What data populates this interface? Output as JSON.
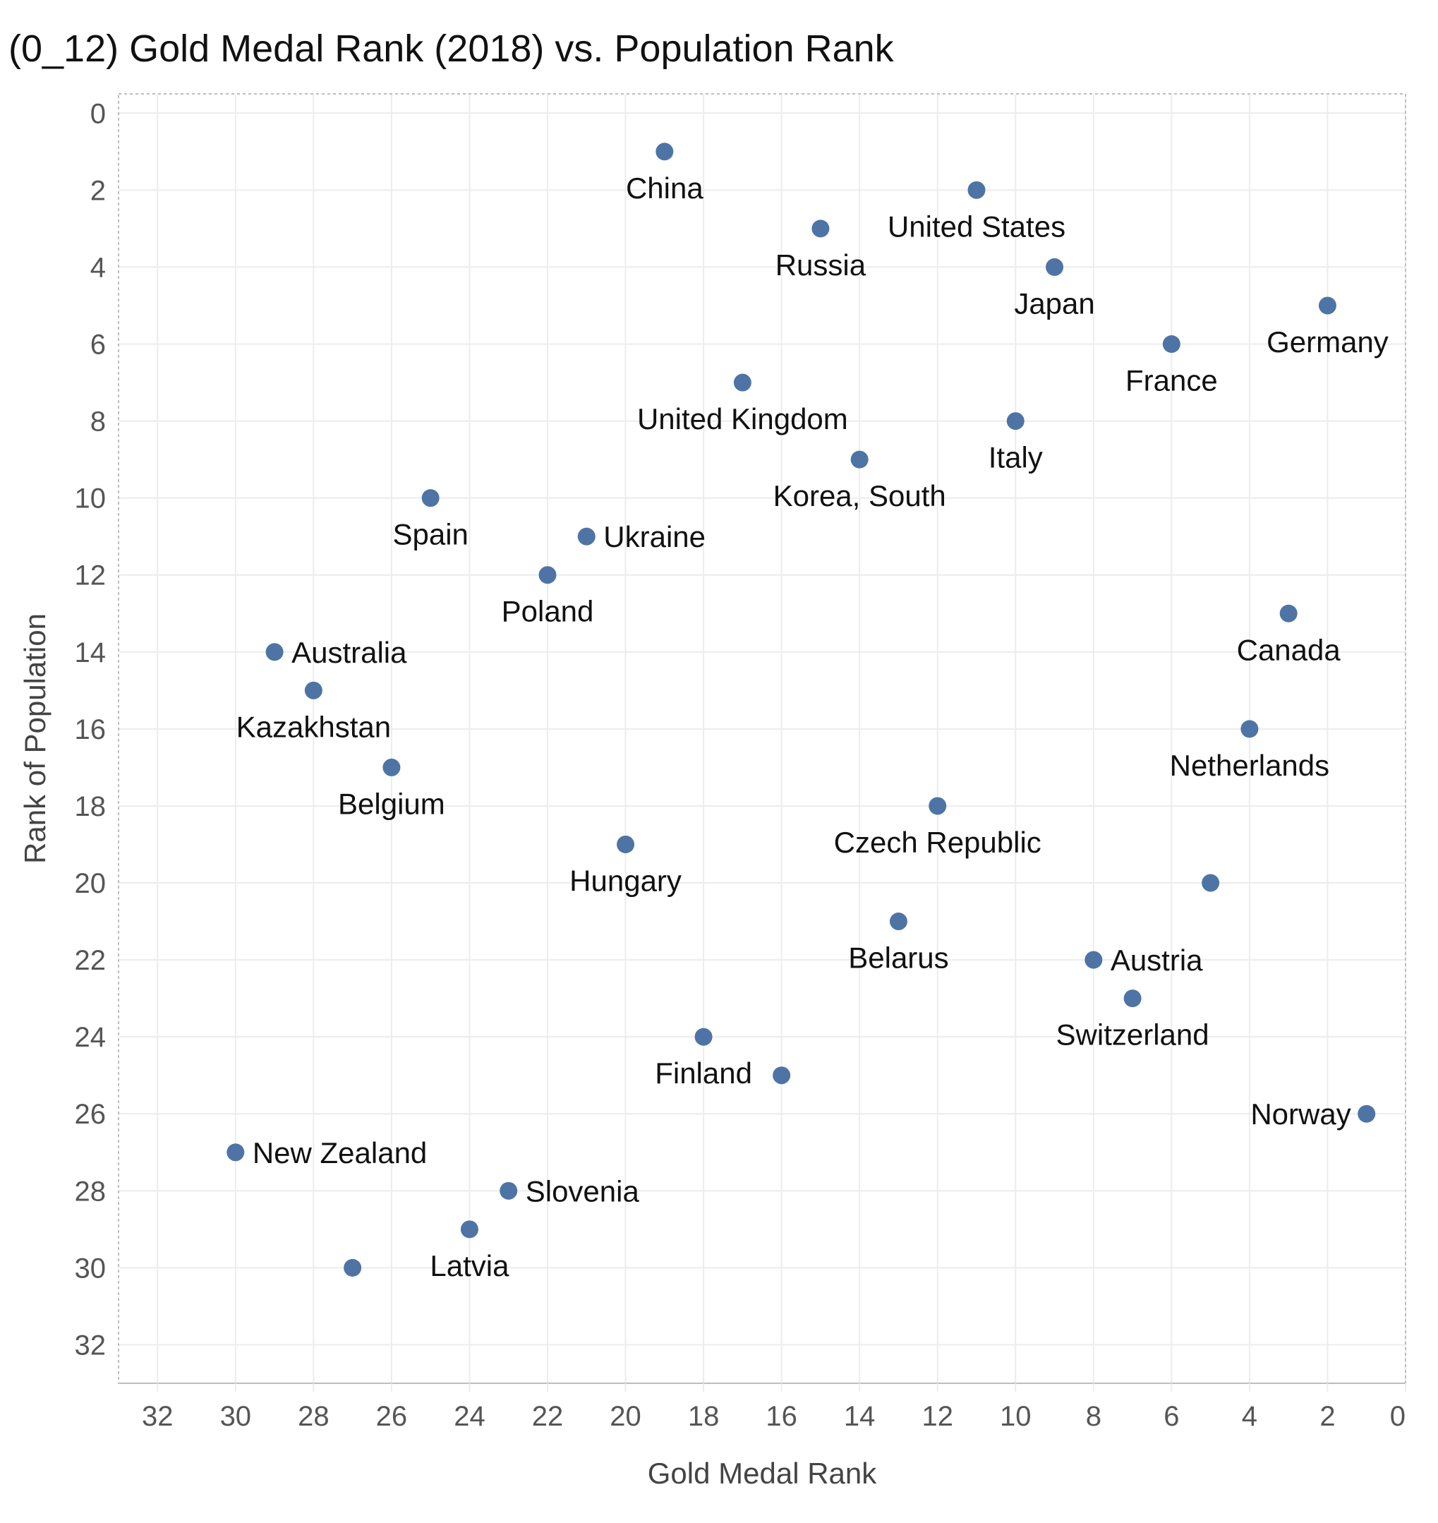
{
  "title": "(0_12) Gold Medal Rank (2018) vs. Population Rank",
  "colors": {
    "point": "#4e74a6",
    "grid": "#ececec",
    "frame": "#bdbdbd",
    "tick": "#555555",
    "label": "#111111"
  },
  "chart_data": {
    "type": "scatter",
    "title": "(0_12) Gold Medal Rank (2018) vs. Population Rank",
    "xlabel": "Gold Medal Rank",
    "ylabel": "Rank of Population",
    "xlim": [
      33,
      0
    ],
    "ylim": [
      -0.5,
      33
    ],
    "x_reversed": true,
    "y_reversed": true,
    "x_ticks": [
      32,
      30,
      28,
      26,
      24,
      22,
      20,
      18,
      16,
      14,
      12,
      10,
      8,
      6,
      4,
      2,
      0
    ],
    "y_ticks": [
      0,
      2,
      4,
      6,
      8,
      10,
      12,
      14,
      16,
      18,
      20,
      22,
      24,
      26,
      28,
      30,
      32
    ],
    "grid": true,
    "points": [
      {
        "label": "China",
        "x": 19,
        "y": 1,
        "pos": "below"
      },
      {
        "label": "United States",
        "x": 11,
        "y": 2,
        "pos": "below"
      },
      {
        "label": "Russia",
        "x": 15,
        "y": 3,
        "pos": "below"
      },
      {
        "label": "Japan",
        "x": 9,
        "y": 4,
        "pos": "below"
      },
      {
        "label": "Germany",
        "x": 2,
        "y": 5,
        "pos": "below"
      },
      {
        "label": "France",
        "x": 6,
        "y": 6,
        "pos": "below"
      },
      {
        "label": "United Kingdom",
        "x": 17,
        "y": 7,
        "pos": "below"
      },
      {
        "label": "Italy",
        "x": 10,
        "y": 8,
        "pos": "below"
      },
      {
        "label": "Korea, South",
        "x": 14,
        "y": 9,
        "pos": "below"
      },
      {
        "label": "Spain",
        "x": 25,
        "y": 10,
        "pos": "below"
      },
      {
        "label": "Ukraine",
        "x": 21,
        "y": 11,
        "pos": "right"
      },
      {
        "label": "Poland",
        "x": 22,
        "y": 12,
        "pos": "below"
      },
      {
        "label": "Canada",
        "x": 3,
        "y": 13,
        "pos": "below"
      },
      {
        "label": "Australia",
        "x": 29,
        "y": 14,
        "pos": "right"
      },
      {
        "label": "Kazakhstan",
        "x": 28,
        "y": 15,
        "pos": "below"
      },
      {
        "label": "Netherlands",
        "x": 4,
        "y": 16,
        "pos": "below"
      },
      {
        "label": "Belgium",
        "x": 26,
        "y": 17,
        "pos": "below"
      },
      {
        "label": "Czech Republic",
        "x": 12,
        "y": 18,
        "pos": "below"
      },
      {
        "label": "Hungary",
        "x": 20,
        "y": 19,
        "pos": "below"
      },
      {
        "label": "",
        "x": 5,
        "y": 20,
        "pos": "none"
      },
      {
        "label": "Belarus",
        "x": 13,
        "y": 21,
        "pos": "below"
      },
      {
        "label": "Austria",
        "x": 8,
        "y": 22,
        "pos": "right"
      },
      {
        "label": "Switzerland",
        "x": 7,
        "y": 23,
        "pos": "below"
      },
      {
        "label": "Finland",
        "x": 18,
        "y": 24,
        "pos": "below"
      },
      {
        "label": "",
        "x": 16,
        "y": 25,
        "pos": "none"
      },
      {
        "label": "Norway",
        "x": 1,
        "y": 26,
        "pos": "left"
      },
      {
        "label": "New Zealand",
        "x": 30,
        "y": 27,
        "pos": "right"
      },
      {
        "label": "Slovenia",
        "x": 23,
        "y": 28,
        "pos": "right"
      },
      {
        "label": "Latvia",
        "x": 24,
        "y": 29,
        "pos": "below"
      },
      {
        "label": "",
        "x": 27,
        "y": 30,
        "pos": "none"
      }
    ]
  }
}
